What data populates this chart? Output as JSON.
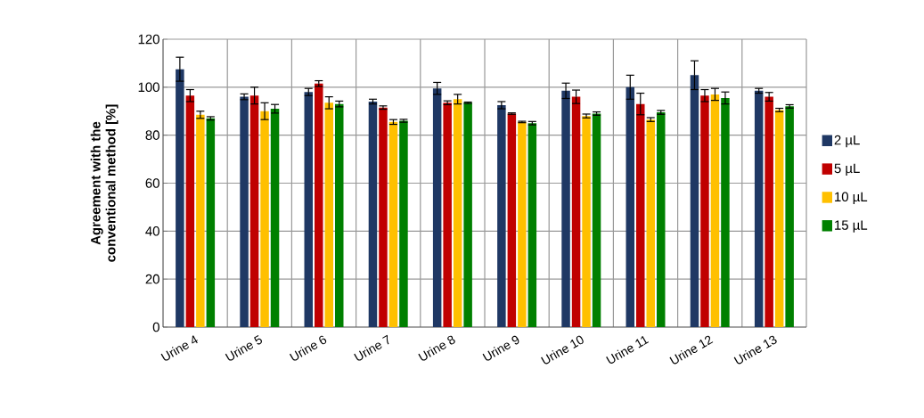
{
  "chart_data": {
    "type": "bar",
    "ylabel": "Agreement with the conventional method [%]",
    "categories": [
      "Urine 4",
      "Urine 5",
      "Urine 6",
      "Urine 7",
      "Urine 8",
      "Urine 9",
      "Urine 10",
      "Urine 11",
      "Urine 12",
      "Urine 13"
    ],
    "series": [
      {
        "name": "2 µL",
        "color": "#1f3864",
        "values": [
          107.5,
          96,
          98,
          94,
          99.5,
          92.5,
          98.5,
          100,
          105,
          98.5
        ],
        "errors": [
          5,
          1.2,
          1.5,
          1,
          2.5,
          1.5,
          3.2,
          5,
          6,
          1
        ]
      },
      {
        "name": "5 µL",
        "color": "#c00000",
        "values": [
          96.5,
          96.5,
          101.5,
          91.5,
          93.5,
          89,
          96,
          93,
          96.5,
          96
        ],
        "errors": [
          2.5,
          3.5,
          1.2,
          0.7,
          0.8,
          0.3,
          2.8,
          4.5,
          2.5,
          1.8
        ]
      },
      {
        "name": "10 µL",
        "color": "#ffc000",
        "values": [
          88.5,
          90,
          93.5,
          85.5,
          95,
          85.5,
          88,
          86.5,
          97,
          90.5
        ],
        "errors": [
          1.5,
          3.5,
          2.5,
          1,
          2,
          0.3,
          0.8,
          0.8,
          2.5,
          0.7
        ]
      },
      {
        "name": "15 µL",
        "color": "#008000",
        "values": [
          87,
          91,
          93,
          86,
          93.5,
          85,
          89,
          89.5,
          95.5,
          92
        ],
        "errors": [
          0.7,
          1.8,
          1.2,
          0.6,
          0.3,
          0.7,
          0.7,
          0.8,
          2.5,
          0.7
        ]
      }
    ],
    "ylim": [
      0,
      120
    ],
    "yticks": [
      0,
      20,
      40,
      60,
      80,
      100,
      120
    ],
    "grid": true,
    "legend": "right"
  }
}
